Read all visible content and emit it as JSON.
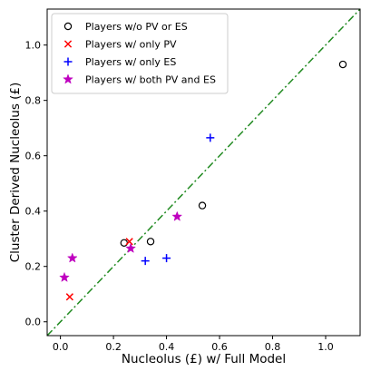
{
  "chart_data": {
    "type": "scatter",
    "xlabel": "Nucleolus (£) w/ Full Model",
    "ylabel": "Cluster Derived Nucleolus (£)",
    "xlim": [
      -0.05,
      1.13
    ],
    "ylim": [
      -0.05,
      1.13
    ],
    "x_ticks": [
      "0.0",
      "0.2",
      "0.4",
      "0.6",
      "0.8",
      "1.0"
    ],
    "y_ticks": [
      "0.0",
      "0.2",
      "0.4",
      "0.6",
      "0.8",
      "1.0"
    ],
    "grid": false,
    "legend_position": "top-left",
    "reference_line": {
      "style": "dash-dot",
      "color": "#228B22",
      "from": [
        -0.05,
        -0.05
      ],
      "to": [
        1.13,
        1.13
      ]
    },
    "series": [
      {
        "name": "Players w/o PV or ES",
        "marker": "circle-open",
        "color": "#000000",
        "points": [
          [
            0.24,
            0.285
          ],
          [
            0.34,
            0.29
          ],
          [
            0.535,
            0.42
          ],
          [
            1.065,
            0.93
          ]
        ]
      },
      {
        "name": "Players w/ only PV",
        "marker": "x",
        "color": "#ff0000",
        "points": [
          [
            0.035,
            0.09
          ],
          [
            0.26,
            0.29
          ]
        ]
      },
      {
        "name": "Players w/ only ES",
        "marker": "plus",
        "color": "#0000ff",
        "points": [
          [
            0.565,
            0.665
          ],
          [
            0.32,
            0.22
          ],
          [
            0.4,
            0.23
          ]
        ]
      },
      {
        "name": "Players w/ both PV and ES",
        "marker": "star",
        "color": "#bf00bf",
        "points": [
          [
            0.015,
            0.16
          ],
          [
            0.045,
            0.23
          ],
          [
            0.265,
            0.265
          ],
          [
            0.44,
            0.38
          ]
        ]
      }
    ]
  }
}
